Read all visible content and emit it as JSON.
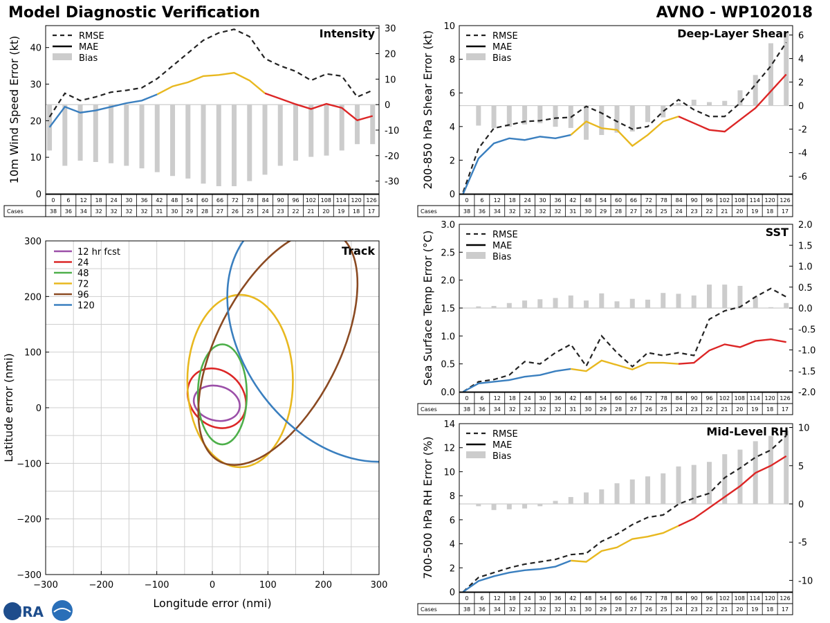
{
  "header": {
    "left_title": "Model Diagnostic Verification",
    "right_title": "AVNO - WP102018"
  },
  "logo": {
    "text": "CIRA"
  },
  "legend_labels": {
    "rmse": "RMSE",
    "mae": "MAE",
    "bias": "Bias"
  },
  "table": {
    "cases_label": "Cases",
    "hours": [
      0,
      6,
      12,
      18,
      24,
      30,
      36,
      42,
      48,
      54,
      60,
      66,
      72,
      78,
      84,
      90,
      96,
      102,
      108,
      114,
      120,
      126
    ],
    "cases": [
      38,
      36,
      34,
      32,
      32,
      32,
      32,
      31,
      30,
      29,
      28,
      27,
      26,
      25,
      24,
      23,
      22,
      21,
      20,
      19,
      18,
      17
    ]
  },
  "colors": {
    "blue": "#3a7fbf",
    "yellow": "#e8b81f",
    "red": "#dc2626",
    "bias": "#cccccc",
    "rmse": "#222222"
  },
  "chart_data": [
    {
      "id": "intensity",
      "type": "line",
      "title": "Intensity",
      "ylabel": "10m Wind Speed Error (kt)",
      "ylim": [
        0,
        46
      ],
      "yticks": [
        0,
        10,
        20,
        30,
        40
      ],
      "y2lim": [
        -35,
        31
      ],
      "y2ticks": [
        -30,
        -20,
        -10,
        0,
        10,
        20,
        30
      ],
      "x": [
        0,
        6,
        12,
        18,
        24,
        30,
        36,
        42,
        48,
        54,
        60,
        66,
        72,
        78,
        84,
        90,
        96,
        102,
        108,
        114,
        120,
        126
      ],
      "rmse": [
        21,
        27.5,
        25.5,
        26.5,
        27.8,
        28.3,
        29,
        31.5,
        35,
        38.5,
        42,
        44,
        45,
        43,
        37,
        35,
        33.5,
        31,
        32.8,
        32.2,
        26.5,
        28.3
      ],
      "mae": [
        18.2,
        23.8,
        22.2,
        22.8,
        23.8,
        24.8,
        25.5,
        27.2,
        29.4,
        30.5,
        32.2,
        32.5,
        33.1,
        31,
        27.5,
        26,
        24.5,
        23.2,
        24.6,
        23.5,
        20.1,
        21.3
      ],
      "bias": [
        -18,
        -24,
        -22,
        -22.5,
        -23,
        -24,
        -25,
        -26.5,
        -28,
        -29,
        -31,
        -32,
        -32,
        -30,
        -27.5,
        -24,
        -22,
        -20.5,
        -20,
        -18,
        -15.5,
        -15.5
      ]
    },
    {
      "id": "shear",
      "type": "line",
      "title": "Deep-Layer Shear",
      "ylabel": "200-850 hPa Shear Error (kt)",
      "ylim": [
        0,
        10
      ],
      "yticks": [
        0,
        2,
        4,
        6,
        8,
        10
      ],
      "y2lim": [
        -7.5,
        6.8
      ],
      "y2ticks": [
        -6,
        -4,
        -2,
        0,
        2,
        4,
        6
      ],
      "x": [
        0,
        6,
        12,
        18,
        24,
        30,
        36,
        42,
        48,
        54,
        60,
        66,
        72,
        78,
        84,
        90,
        96,
        102,
        108,
        114,
        120,
        126
      ],
      "rmse": [
        0.1,
        2.7,
        3.9,
        4.1,
        4.3,
        4.35,
        4.5,
        4.55,
        5.2,
        4.8,
        4.3,
        3.85,
        4,
        4.9,
        5.6,
        5.0,
        4.6,
        4.6,
        5.4,
        6.5,
        7.6,
        9.0
      ],
      "mae": [
        0,
        2.1,
        3.0,
        3.3,
        3.2,
        3.4,
        3.3,
        3.5,
        4.3,
        3.9,
        3.8,
        2.85,
        3.5,
        4.3,
        4.6,
        4.2,
        3.8,
        3.7,
        4.4,
        5.1,
        6.1,
        7.1
      ],
      "bias": [
        0,
        -1.7,
        -1.9,
        -1.8,
        -1.6,
        -1.5,
        -1.8,
        -1.9,
        -2.9,
        -2.5,
        -2.3,
        -2.2,
        -1.4,
        -1.0,
        0.2,
        0.5,
        0.3,
        0.4,
        1.3,
        2.6,
        5.3,
        6.2
      ]
    },
    {
      "id": "sst",
      "type": "line",
      "title": "SST",
      "ylabel": "Sea Surface Temp Error (°C)",
      "ylim": [
        0,
        3
      ],
      "yticks": [
        0.0,
        0.5,
        1.0,
        1.5,
        2.0,
        2.5,
        3.0
      ],
      "y2lim": [
        -2.0,
        2.0
      ],
      "y2ticks": [
        -2.0,
        -1.5,
        -1.0,
        -0.5,
        0.0,
        0.5,
        1.0,
        1.5,
        2.0
      ],
      "x": [
        0,
        6,
        12,
        18,
        24,
        30,
        36,
        42,
        48,
        54,
        60,
        66,
        72,
        78,
        84,
        90,
        96,
        102,
        108,
        114,
        120,
        126
      ],
      "rmse": [
        0,
        0.18,
        0.22,
        0.3,
        0.54,
        0.5,
        0.7,
        0.85,
        0.46,
        1.0,
        0.7,
        0.45,
        0.7,
        0.65,
        0.7,
        0.65,
        1.3,
        1.45,
        1.52,
        1.7,
        1.85,
        1.7
      ],
      "mae": [
        0,
        0.15,
        0.18,
        0.21,
        0.27,
        0.3,
        0.37,
        0.41,
        0.37,
        0.56,
        0.48,
        0.4,
        0.52,
        0.52,
        0.5,
        0.52,
        0.74,
        0.85,
        0.8,
        0.91,
        0.94,
        0.89
      ],
      "bias": [
        0,
        0.04,
        0.05,
        0.12,
        0.18,
        0.21,
        0.24,
        0.3,
        0.18,
        0.35,
        0.16,
        0.22,
        0.2,
        0.36,
        0.34,
        0.3,
        0.56,
        0.56,
        0.53,
        0.27,
        0.02,
        0.12
      ]
    },
    {
      "id": "rh",
      "type": "line",
      "title": "Mid-Level RH",
      "ylabel": "700-500 hPa RH Error (%)",
      "ylim": [
        0,
        14
      ],
      "yticks": [
        0,
        2,
        4,
        6,
        8,
        10,
        12,
        14
      ],
      "y2lim": [
        -11.5,
        10.5
      ],
      "y2ticks": [
        -10,
        -5,
        0,
        5,
        10
      ],
      "x": [
        0,
        6,
        12,
        18,
        24,
        30,
        36,
        42,
        48,
        54,
        60,
        66,
        72,
        78,
        84,
        90,
        96,
        102,
        108,
        114,
        120,
        126
      ],
      "rmse": [
        0,
        1.2,
        1.6,
        2.0,
        2.3,
        2.5,
        2.7,
        3.1,
        3.2,
        4.2,
        4.8,
        5.6,
        6.2,
        6.4,
        7.3,
        7.8,
        8.2,
        9.5,
        10.3,
        11.2,
        11.8,
        13.0
      ],
      "mae": [
        0,
        0.9,
        1.3,
        1.6,
        1.8,
        1.9,
        2.1,
        2.6,
        2.5,
        3.4,
        3.7,
        4.4,
        4.6,
        4.9,
        5.5,
        6.1,
        7.0,
        7.9,
        8.8,
        9.9,
        10.5,
        11.3
      ],
      "bias": [
        0,
        -0.3,
        -0.8,
        -0.7,
        -0.6,
        -0.3,
        0.4,
        0.9,
        1.5,
        1.9,
        2.7,
        3.2,
        3.6,
        4.0,
        4.9,
        5.1,
        5.5,
        6.5,
        7.1,
        8.2,
        8.9,
        9.6
      ]
    },
    {
      "id": "track",
      "type": "scatter",
      "title": "Track",
      "xlabel": "Longitude error (nmi)",
      "ylabel": "Latitude error (nmi)",
      "xlim": [
        -300,
        300
      ],
      "ylim": [
        -300,
        300
      ],
      "xticks": [
        -300,
        -200,
        -100,
        0,
        100,
        200,
        300
      ],
      "yticks": [
        -300,
        -200,
        -100,
        0,
        100,
        200,
        300
      ],
      "ellipses": [
        {
          "label": "12 hr fcst",
          "color": "#9b4fa8",
          "cx": 8,
          "cy": 8,
          "rx": 42,
          "ry": 31,
          "angle": 15
        },
        {
          "label": "24",
          "color": "#dc2626",
          "cx": 8,
          "cy": 17,
          "rx": 58,
          "ry": 48,
          "angle": 48
        },
        {
          "label": "48",
          "color": "#4daf4a",
          "cx": 18,
          "cy": 24,
          "rx": 44,
          "ry": 90,
          "angle": 0
        },
        {
          "label": "72",
          "color": "#e8b81f",
          "cx": 50,
          "cy": 48,
          "rx": 95,
          "ry": 155,
          "angle": 0
        },
        {
          "label": "96",
          "color": "#8b4a22",
          "cx": 118,
          "cy": 108,
          "rx": 110,
          "ry": 230,
          "angle": 27
        },
        {
          "label": "120",
          "color": "#3a7fbf",
          "cx": 235,
          "cy": 130,
          "rx": 180,
          "ry": 250,
          "angle": -37
        }
      ]
    }
  ]
}
